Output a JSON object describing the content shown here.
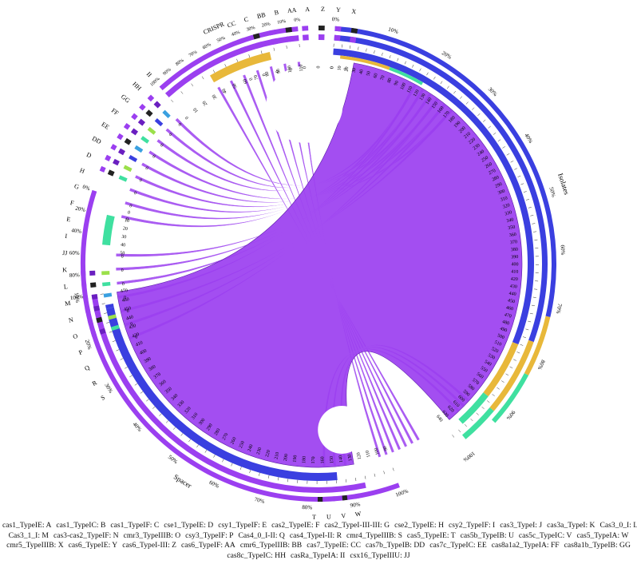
{
  "sectors": {
    "spacer_label": "Spacer",
    "isolates_label": "Isolates",
    "crispr_label": "CRISPR",
    "gene_letters_left": [
      "II",
      "HH",
      "GG",
      "FF",
      "EE",
      "DD",
      "D",
      "H",
      "G",
      "F",
      "E",
      "I",
      "JJ",
      "K",
      "L",
      "M",
      "N",
      "O",
      "P",
      "Q",
      "R",
      "S"
    ],
    "gene_letters_top": [
      "CC",
      "C",
      "BB",
      "B",
      "AA",
      "A",
      "Z",
      "Y",
      "X"
    ],
    "gene_letters_bottom": [
      "T",
      "U",
      "V",
      "W"
    ],
    "spacer_ticks": [
      "470",
      "460",
      "450",
      "440",
      "430",
      "420",
      "410",
      "400",
      "390",
      "380",
      "370",
      "360",
      "350",
      "340",
      "330",
      "320",
      "310",
      "300",
      "290",
      "280",
      "270",
      "260",
      "250",
      "240",
      "230",
      "220",
      "210",
      "200",
      "190",
      "180",
      "170",
      "160",
      "150",
      "140",
      "130",
      "120",
      "110",
      "100",
      "90"
    ],
    "isolate_ticks": [
      "0",
      "10",
      "20",
      "30",
      "40",
      "50",
      "60",
      "70",
      "80",
      "90",
      "100",
      "110",
      "120",
      "130",
      "140",
      "150",
      "160",
      "170",
      "180",
      "190",
      "200",
      "210",
      "220",
      "230",
      "240",
      "250",
      "260",
      "270",
      "280",
      "290",
      "300",
      "310",
      "320",
      "330",
      "340",
      "350",
      "360",
      "370",
      "380",
      "390",
      "400",
      "410",
      "420",
      "430",
      "440",
      "450",
      "460",
      "470",
      "480",
      "490",
      "500",
      "510",
      "520",
      "530",
      "540",
      "550",
      "560",
      "570",
      "580",
      "590",
      "600",
      "610",
      "620",
      "630",
      "640"
    ],
    "crispr_ticks": [
      "0",
      "10",
      "20",
      "30",
      "40",
      "50",
      "60",
      "70",
      "80",
      "90",
      "100",
      "110"
    ],
    "isolates_percent": [
      "0%",
      "10%",
      "20%",
      "30%",
      "40%",
      "50%",
      "60%",
      "70%",
      "80%",
      "90%",
      "100%"
    ],
    "spacer_percent": [
      "100%",
      "90%",
      "80%",
      "70%",
      "60%",
      "50%",
      "40%",
      "30%",
      "20%",
      "10%"
    ],
    "crispr_percent": [
      "100%",
      "90%",
      "80%",
      "70%",
      "60%",
      "50%",
      "40%",
      "30%",
      "20%",
      "10%",
      "0%"
    ],
    "i_percent": [
      "100%",
      "80%",
      "60%",
      "40%",
      "20%",
      "0%"
    ],
    "i_ticks": [
      "50",
      "40",
      "30",
      "20",
      "10",
      "0"
    ],
    "zero_label": "0"
  },
  "legend": [
    [
      "cas1_TypeIE: A",
      "cas1_TypeIC: B",
      "cas1_TypeIF: C",
      "cse1_TypeIE: D",
      "csy1_TypeIF: E",
      "cas2_TypeIE: F",
      "cas2_TypeI-III-III: G",
      "cse2_TypeIE: H",
      "csy2_TypeIF: I",
      "cas3_TypeI: J",
      "cas3a_TypeI: K",
      "Cas3_0_I: L"
    ],
    [
      "Cas3_1_I: M",
      "cas3-cas2_TypeIF: N",
      "cmr3_TypeIIIB: O",
      "csy3_TypeIF: P",
      "Cas4_0_I-II: Q",
      "cas4_TypeI-II: R",
      "cmr4_TypeIIIB: S",
      "cas5_TypeIE: T",
      "cas5b_TypeIB: U",
      "cas5c_TypeIC: V",
      "cas5_TypeIA: W"
    ],
    [
      "cmr5_TypeIIIB: X",
      "cas6_TypeIE: Y",
      "cas6_TypeI-III: Z",
      "cas6_TypeIF: AA",
      "cmr6_TypeIIIB: BB",
      "cas7_TypeIE: CC",
      "cas7b_TypeIB: DD",
      "cas7c_TypeIC: EE",
      "cas8a1a2_TypeIA: FF",
      "cas8a1b_TypeIB: GG"
    ],
    [
      "cas8c_TypeIC: HH",
      "casRa_TypeIA: II",
      "csx16_TypeIIIU: JJ"
    ]
  ],
  "colors": {
    "purple": "#9b3ff0",
    "purple_dark": "#6a1fc0",
    "blue": "#3a3fe0",
    "gold": "#e8b83a",
    "green": "#3fe0a0",
    "lime": "#9be04a"
  }
}
